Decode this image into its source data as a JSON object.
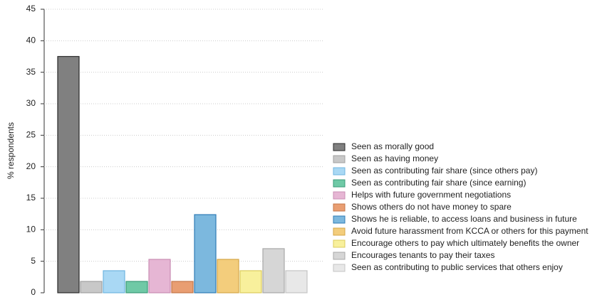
{
  "chart_data": {
    "type": "bar",
    "ylabel": "% respondents",
    "categories": [
      "Seen as morally good",
      "Seen as having money",
      "Seen as contributing fair share (since others pay)",
      "Seen as contributing fair share (since earning)",
      "Helps with future government negotiations",
      "Shows others do not have money to spare",
      "Shows he is reliable, to access loans and business in future",
      "Avoid future harassment from KCCA or others for this payment",
      "Encourage others to pay which ultimately benefits the owner",
      "Encourages tenants to pay their taxes",
      "Seen as contributing to public services that others enjoy"
    ],
    "values": [
      37.5,
      1.8,
      3.5,
      1.8,
      5.3,
      1.8,
      12.4,
      5.3,
      3.5,
      7.0,
      3.5
    ],
    "colors": [
      "#808080",
      "#c8c8c8",
      "#a9d8f4",
      "#6fc9a6",
      "#e6b6d4",
      "#e99e72",
      "#7cb8de",
      "#f3cd7c",
      "#f8f09c",
      "#d6d6d6",
      "#e8e8e8"
    ],
    "edgecolors": [
      "#2b2b2b",
      "#a0a0a0",
      "#6fb6e0",
      "#3a9a78",
      "#c98db3",
      "#c47648",
      "#2f7cb6",
      "#d5a646",
      "#dccc5c",
      "#a8a8a8",
      "#c4c4c4"
    ],
    "ylim": [
      0,
      45
    ],
    "yticks": [
      0,
      5,
      10,
      15,
      20,
      25,
      30,
      35,
      40,
      45
    ],
    "grid": true
  }
}
